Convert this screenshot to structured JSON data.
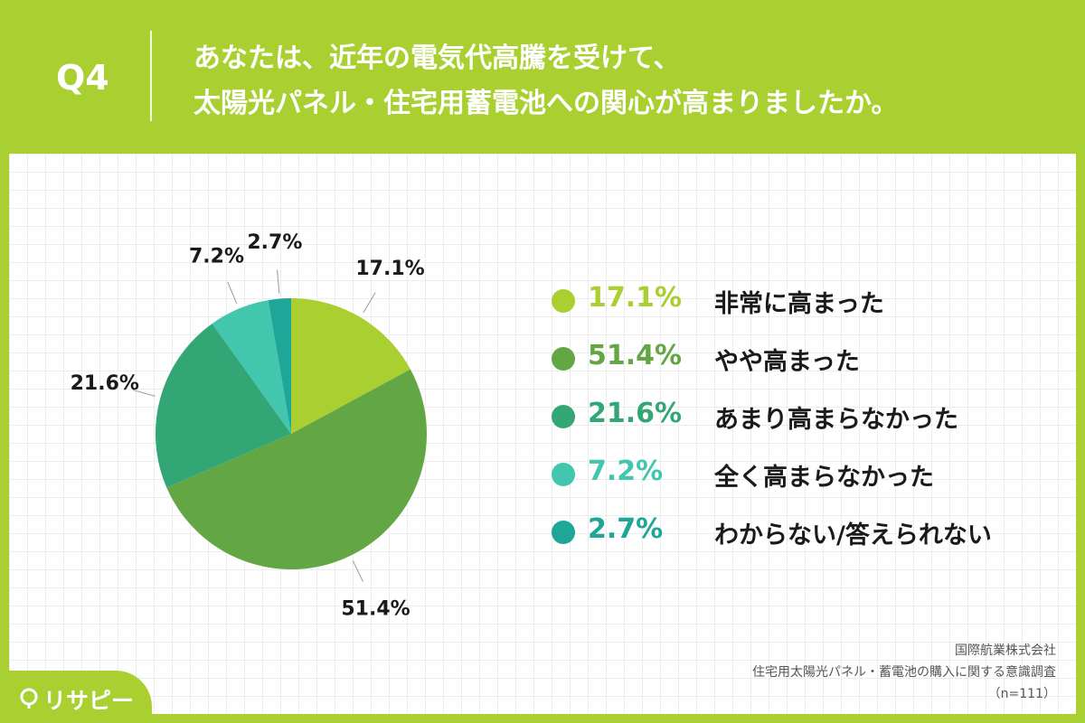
{
  "header": {
    "question_number": "Q4",
    "question_line1": "あなたは、近年の電気代高騰を受けて、",
    "question_line2": "太陽光パネル・住宅用蓄電池への関心が高まりましたか。"
  },
  "chart_data": {
    "type": "pie",
    "categories": [
      "非常に高まった",
      "やや高まった",
      "あまり高まらなかった",
      "全く高まらなかった",
      "わからない/答えられない"
    ],
    "values": [
      17.1,
      51.4,
      21.6,
      7.2,
      2.7
    ],
    "value_labels": [
      "17.1%",
      "51.4%",
      "21.6%",
      "7.2%",
      "2.7%"
    ],
    "colors": [
      "#a9cf31",
      "#63a644",
      "#33a676",
      "#42c6ad",
      "#1ea699"
    ],
    "legend_placement": "right"
  },
  "legend": [
    {
      "value": "17.1%",
      "label": "非常に高まった",
      "color": "#a9cf31"
    },
    {
      "value": "51.4%",
      "label": "やや高まった",
      "color": "#63a644"
    },
    {
      "value": "21.6%",
      "label": "あまり高まらなかった",
      "color": "#33a676"
    },
    {
      "value": "7.2%",
      "label": "全く高まらなかった",
      "color": "#42c6ad"
    },
    {
      "value": "2.7%",
      "label": "わからない/答えられない",
      "color": "#1ea699"
    }
  ],
  "source": {
    "company": "国際航業株式会社",
    "survey": "住宅用太陽光パネル・蓄電池の購入に関する意識調査",
    "sample": "（n=111）"
  },
  "logo": {
    "text": "リサピー"
  }
}
